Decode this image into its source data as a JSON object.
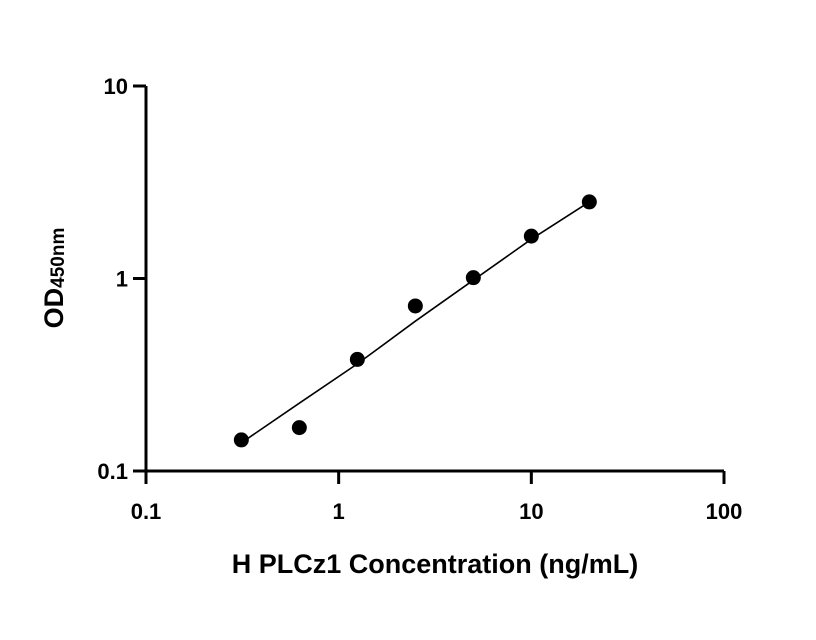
{
  "chart_data": {
    "type": "scatter",
    "xlabel": "H PLCz1 Concentration (ng/mL)",
    "ylabel": "OD",
    "ylabel_subscript": "450nm",
    "xscale": "log",
    "yscale": "log",
    "xlim": [
      0.1,
      100
    ],
    "ylim": [
      0.1,
      10
    ],
    "xticks": [
      0.1,
      1,
      10,
      100
    ],
    "xtick_labels": [
      "0.1",
      "1",
      "10",
      "100"
    ],
    "yticks": [
      0.1,
      1,
      10
    ],
    "ytick_labels": [
      "0.1",
      "1",
      "10"
    ],
    "grid": false,
    "legend": "none",
    "series": [
      {
        "points": [
          {
            "x": 0.3125,
            "y": 0.145
          },
          {
            "x": 0.625,
            "y": 0.168
          },
          {
            "x": 1.25,
            "y": 0.38
          },
          {
            "x": 2.5,
            "y": 0.72
          },
          {
            "x": 5,
            "y": 1.01
          },
          {
            "x": 10,
            "y": 1.66
          },
          {
            "x": 20,
            "y": 2.5
          }
        ]
      }
    ],
    "fit_curve": {
      "x": [
        0.3125,
        0.625,
        1.25,
        2.5,
        5,
        10,
        20
      ],
      "y": [
        0.14,
        0.225,
        0.36,
        0.6,
        0.98,
        1.6,
        2.5
      ]
    },
    "colors": {
      "marker": "#000000",
      "line": "#000000",
      "axis": "#000000"
    }
  }
}
